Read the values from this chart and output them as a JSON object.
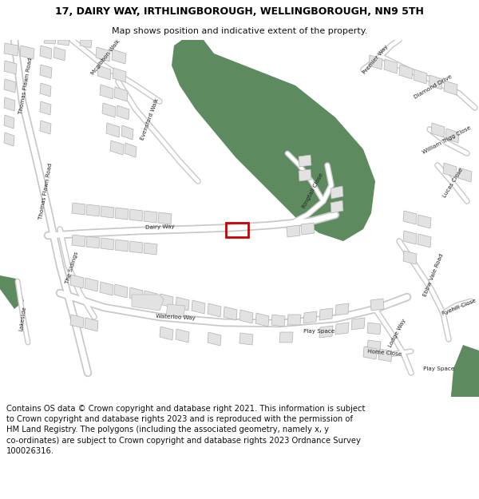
{
  "title": "17, DAIRY WAY, IRTHLINGBOROUGH, WELLINGBOROUGH, NN9 5TH",
  "subtitle": "Map shows position and indicative extent of the property.",
  "footer": "Contains OS data © Crown copyright and database right 2021. This information is subject to Crown copyright and database rights 2023 and is reproduced with the permission of HM Land Registry. The polygons (including the associated geometry, namely x, y co-ordinates) are subject to Crown copyright and database rights 2023 Ordnance Survey 100026316.",
  "title_fontsize": 9.0,
  "subtitle_fontsize": 8.0,
  "footer_fontsize": 7.2,
  "map_bg": "#f2f2f2",
  "building_fill": "#e2e2e2",
  "building_edge": "#b0b0b0",
  "green_color": "#5d8a5e",
  "plot_color": "#cc0000",
  "white": "#ffffff",
  "road_casing": "#c8c8c8",
  "road_fill": "#ffffff",
  "text_color": "#222222",
  "header_bg": "#ffffff",
  "footer_bg": "#ffffff"
}
